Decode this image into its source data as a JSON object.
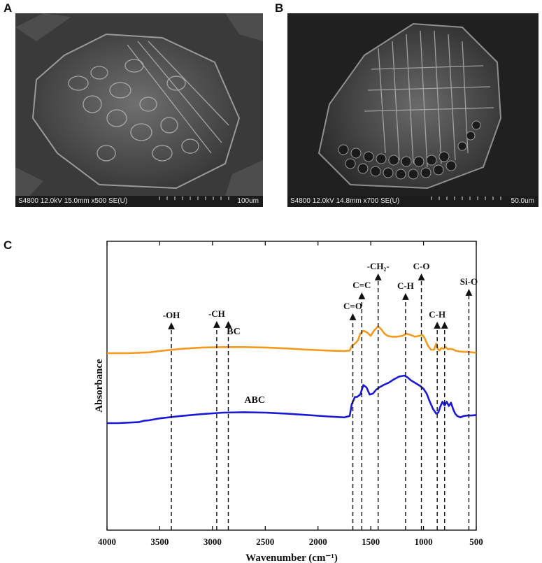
{
  "panels": {
    "a": {
      "letter": "A",
      "info": "S4800 12.0kV 15.0mm x500 SE(U)",
      "scale": "100um"
    },
    "b": {
      "letter": "B",
      "info": "S4800 12.0kV 14.8mm x700 SE(U)",
      "scale": "50.0um"
    },
    "c": {
      "letter": "C"
    }
  },
  "chart_data": {
    "type": "line",
    "title": "",
    "xlabel": "Wavenumber (cm⁻¹)",
    "ylabel": "Absorbance",
    "xlim": [
      4000,
      500
    ],
    "x_ticks": [
      4000,
      3500,
      3000,
      2500,
      2000,
      1500,
      1000,
      500
    ],
    "y_ticks": [],
    "grid": false,
    "series": [
      {
        "name": "BC",
        "color": "#f39a1e",
        "x": [
          4000,
          3900,
          3800,
          3700,
          3600,
          3500,
          3300,
          3100,
          2900,
          2700,
          2500,
          2300,
          2100,
          1900,
          1750,
          1700,
          1680,
          1650,
          1620,
          1600,
          1570,
          1530,
          1500,
          1470,
          1430,
          1400,
          1370,
          1340,
          1300,
          1250,
          1200,
          1160,
          1120,
          1080,
          1040,
          1010,
          990,
          960,
          930,
          900,
          880,
          865,
          850,
          830,
          810,
          790,
          770,
          750,
          720,
          700,
          660,
          620,
          580,
          540,
          500
        ],
        "y": [
          0.0,
          0.0,
          0.0,
          0.01,
          0.02,
          0.05,
          0.1,
          0.13,
          0.14,
          0.14,
          0.13,
          0.11,
          0.08,
          0.06,
          0.05,
          0.06,
          0.17,
          0.22,
          0.3,
          0.45,
          0.52,
          0.47,
          0.4,
          0.52,
          0.62,
          0.55,
          0.45,
          0.4,
          0.38,
          0.38,
          0.4,
          0.45,
          0.42,
          0.38,
          0.4,
          0.42,
          0.35,
          0.18,
          0.08,
          0.08,
          0.22,
          0.1,
          0.06,
          0.12,
          0.1,
          0.14,
          0.09,
          0.1,
          0.09,
          0.06,
          0.04,
          0.03,
          0.03,
          0.02,
          0.01
        ]
      },
      {
        "name": "ABC",
        "color": "#1a1ad6",
        "x": [
          4000,
          3900,
          3800,
          3700,
          3650,
          3600,
          3500,
          3300,
          3100,
          2900,
          2700,
          2500,
          2300,
          2100,
          1900,
          1750,
          1700,
          1680,
          1650,
          1630,
          1600,
          1570,
          1540,
          1510,
          1480,
          1450,
          1420,
          1380,
          1330,
          1280,
          1230,
          1180,
          1150,
          1120,
          1090,
          1060,
          1030,
          1000,
          970,
          940,
          910,
          880,
          860,
          840,
          820,
          800,
          780,
          760,
          740,
          720,
          700,
          680,
          650,
          620,
          580,
          540,
          500
        ],
        "y": [
          0.0,
          0.0,
          0.01,
          0.02,
          0.05,
          0.06,
          0.1,
          0.15,
          0.19,
          0.22,
          0.23,
          0.22,
          0.2,
          0.17,
          0.14,
          0.12,
          0.15,
          0.4,
          0.55,
          0.55,
          0.6,
          0.8,
          0.75,
          0.6,
          0.62,
          0.7,
          0.75,
          0.8,
          0.85,
          0.92,
          0.98,
          1.0,
          0.96,
          0.9,
          0.86,
          0.82,
          0.78,
          0.72,
          0.62,
          0.45,
          0.3,
          0.2,
          0.22,
          0.35,
          0.45,
          0.37,
          0.45,
          0.36,
          0.43,
          0.3,
          0.2,
          0.15,
          0.12,
          0.15,
          0.16,
          0.16,
          0.17
        ]
      }
    ],
    "series_labels": [
      {
        "series": "BC",
        "text": "BC",
        "x": 2800,
        "offset": 0.34
      },
      {
        "series": "ABC",
        "text": "ABC",
        "x": 2600,
        "offset": 0.34
      }
    ],
    "annotations": [
      {
        "label": "-OH",
        "x": 3390
      },
      {
        "label": "-CH",
        "x": 2960
      },
      {
        "label": "",
        "x": 2850
      },
      {
        "label": "C=O",
        "x": 1670
      },
      {
        "label": "C=C",
        "x": 1585
      },
      {
        "label": "-CH₂-",
        "x": 1430
      },
      {
        "label": "C-H",
        "x": 1170
      },
      {
        "label": "C-O",
        "x": 1020
      },
      {
        "label": "C-H",
        "x": 870
      },
      {
        "label": "",
        "x": 800
      },
      {
        "label": "Si-O",
        "x": 570
      }
    ]
  }
}
